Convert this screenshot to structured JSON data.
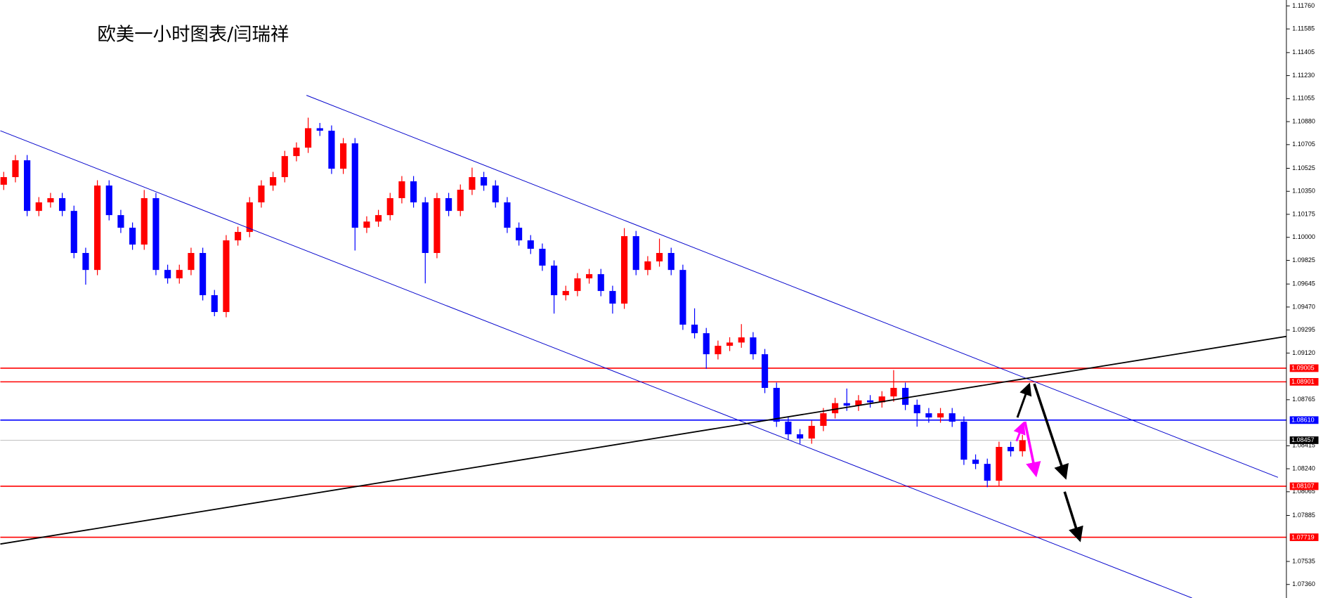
{
  "chart_data": {
    "type": "candlestick",
    "title": "欧美一小时图表/闫瑞祥",
    "up_color": "#ff0000",
    "down_color": "#0000ff",
    "open": [
      1.104,
      1.10458,
      1.10586,
      1.10201,
      1.10266,
      1.10298,
      1.10201,
      1.09881,
      1.09752,
      1.10394,
      1.10169,
      1.10073,
      1.09945,
      1.10298,
      1.09752,
      1.09688,
      1.09752,
      1.09881,
      1.0956,
      1.09432,
      1.09977,
      1.10041,
      1.10266,
      1.10394,
      1.10458,
      1.10618,
      1.10682,
      1.1083,
      1.10811,
      1.10522,
      1.10715,
      1.10073,
      1.1012,
      1.10169,
      1.10298,
      1.10426,
      1.10266,
      1.09881,
      1.10298,
      1.10201,
      1.10362,
      1.10458,
      1.10394,
      1.10266,
      1.10073,
      1.09977,
      1.09913,
      1.09785,
      1.0956,
      1.09592,
      1.09688,
      1.0972,
      1.09592,
      1.09496,
      1.10009,
      1.09752,
      1.09817,
      1.09881,
      1.09752,
      1.09336,
      1.09271,
      1.09111,
      1.09175,
      1.092,
      1.09239,
      1.09111,
      1.08855,
      1.08598,
      1.08502,
      1.0847,
      1.08566,
      1.08662,
      1.08739,
      1.0872,
      1.0876,
      1.08745,
      1.0879,
      1.08855,
      1.08726,
      1.08662,
      1.0863,
      1.08662,
      1.08598,
      1.08309,
      1.08277,
      1.08149,
      1.08406,
      1.08373
    ],
    "high": [
      1.10498,
      1.10626,
      1.10626,
      1.10306,
      1.10338,
      1.10338,
      1.10241,
      1.09921,
      1.10434,
      1.10434,
      1.10209,
      1.10113,
      1.1036,
      1.10338,
      1.09792,
      1.09792,
      1.09921,
      1.09921,
      1.096,
      1.10017,
      1.10081,
      1.10306,
      1.10434,
      1.10498,
      1.10658,
      1.10722,
      1.1091,
      1.1087,
      1.10851,
      1.10755,
      1.10755,
      1.1016,
      1.10209,
      1.10338,
      1.10466,
      1.10466,
      1.10306,
      1.10338,
      1.10338,
      1.10402,
      1.1053,
      1.10498,
      1.10434,
      1.10306,
      1.10113,
      1.10017,
      1.09953,
      1.09825,
      1.09632,
      1.09728,
      1.0976,
      1.0976,
      1.09632,
      1.1007,
      1.10049,
      1.09857,
      1.0999,
      1.09921,
      1.09792,
      1.0946,
      1.09311,
      1.09215,
      1.0924,
      1.0934,
      1.09279,
      1.09151,
      1.08895,
      1.08638,
      1.08542,
      1.08606,
      1.08702,
      1.08779,
      1.0885,
      1.088,
      1.088,
      1.0883,
      1.0899,
      1.08895,
      1.08766,
      1.08702,
      1.08702,
      1.08702,
      1.08638,
      1.08349,
      1.08317,
      1.08446,
      1.08446,
      1.08497
    ],
    "low": [
      1.1036,
      1.10418,
      1.10161,
      1.10161,
      1.10226,
      1.10161,
      1.09841,
      1.0964,
      1.09712,
      1.10129,
      1.10033,
      1.09905,
      1.09905,
      1.09712,
      1.09648,
      1.09648,
      1.09712,
      1.0952,
      1.094,
      1.09392,
      1.09937,
      1.10001,
      1.10226,
      1.10354,
      1.10418,
      1.10578,
      1.10642,
      1.10771,
      1.10482,
      1.10482,
      1.099,
      1.10033,
      1.1008,
      1.10129,
      1.10258,
      1.10226,
      1.0965,
      1.09841,
      1.10161,
      1.10161,
      1.10322,
      1.10354,
      1.10226,
      1.10033,
      1.09937,
      1.09873,
      1.09745,
      1.0942,
      1.0952,
      1.09552,
      1.09648,
      1.09552,
      1.0942,
      1.09456,
      1.09712,
      1.09712,
      1.09777,
      1.09712,
      1.09296,
      1.09231,
      1.09,
      1.09071,
      1.09135,
      1.0916,
      1.09071,
      1.08815,
      1.08558,
      1.08462,
      1.0843,
      1.0843,
      1.08526,
      1.08622,
      1.0868,
      1.0868,
      1.08705,
      1.08705,
      1.0875,
      1.08686,
      1.0856,
      1.0859,
      1.0859,
      1.08558,
      1.08269,
      1.08237,
      1.081,
      1.08109,
      1.08333,
      1.08333
    ],
    "close": [
      1.10458,
      1.10586,
      1.10201,
      1.10266,
      1.10298,
      1.10201,
      1.09881,
      1.09752,
      1.10394,
      1.10169,
      1.10073,
      1.09945,
      1.10298,
      1.09752,
      1.09688,
      1.09752,
      1.09881,
      1.0956,
      1.09432,
      1.09977,
      1.10041,
      1.10266,
      1.10394,
      1.10458,
      1.10618,
      1.10682,
      1.1083,
      1.10811,
      1.10522,
      1.10715,
      1.10073,
      1.1012,
      1.10169,
      1.10298,
      1.10426,
      1.10266,
      1.09881,
      1.10298,
      1.10201,
      1.10362,
      1.10458,
      1.10394,
      1.10266,
      1.10073,
      1.09977,
      1.09913,
      1.09785,
      1.0956,
      1.09592,
      1.09688,
      1.0972,
      1.09592,
      1.09496,
      1.10009,
      1.09752,
      1.09817,
      1.09881,
      1.09752,
      1.09336,
      1.09271,
      1.09111,
      1.09175,
      1.092,
      1.09239,
      1.09111,
      1.08855,
      1.08598,
      1.08502,
      1.0847,
      1.08566,
      1.08662,
      1.08739,
      1.0872,
      1.0876,
      1.08745,
      1.0879,
      1.08855,
      1.08726,
      1.08662,
      1.0863,
      1.08662,
      1.08598,
      1.08309,
      1.08277,
      1.08149,
      1.08406,
      1.08373,
      1.08457
    ],
    "ylim": [
      1.07257,
      1.11805
    ],
    "yticks": [
      {
        "value": 1.1176,
        "label": "1.11760"
      },
      1.11585,
      1.11405,
      {
        "value": 1.1123,
        "label": "1.11230"
      },
      1.11055,
      {
        "value": 1.1088,
        "label": "1.10880"
      },
      1.10705,
      1.10525,
      {
        "value": 1.1035,
        "label": "1.10350"
      },
      1.10175,
      {
        "value": 1.1,
        "label": "1.10000"
      },
      1.09825,
      1.09645,
      {
        "value": 1.0947,
        "label": "1.09470"
      },
      1.09295,
      {
        "value": 1.0912,
        "label": "1.09120"
      },
      1.08765,
      1.08415,
      {
        "value": 1.0824,
        "label": "1.08240"
      },
      1.08065,
      1.07885,
      1.07535,
      {
        "value": 1.0736,
        "label": "1.07360"
      }
    ],
    "levels": [
      {
        "value": 1.09005,
        "color": "#ff0000"
      },
      {
        "value": 1.08901,
        "color": "#ff0000"
      },
      {
        "value": 1.0861,
        "label": "1.08610",
        "color": "#0000ff"
      },
      {
        "value": 1.08457,
        "color": "#000000"
      },
      {
        "value": 1.08107,
        "color": "#ff0000"
      },
      {
        "value": 1.07719,
        "color": "#ff0000"
      }
    ]
  }
}
